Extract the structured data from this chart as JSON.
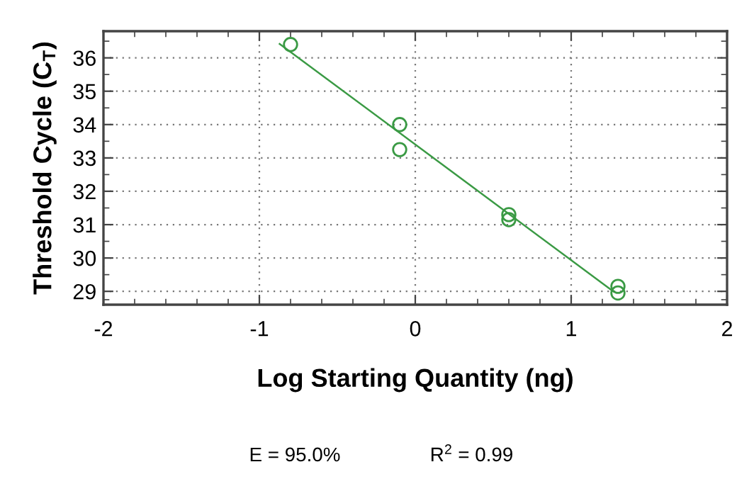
{
  "chart_data": {
    "type": "scatter",
    "xlabel": "Log Starting Quantity (ng)",
    "ylabel": "Threshold Cycle (C$_{T}$)",
    "series": [
      {
        "color": "#3a9a44",
        "marker": "circle",
        "x": [
          -0.8,
          -0.1,
          -0.1,
          0.6,
          0.6,
          1.3,
          1.3
        ],
        "values": [
          36.4,
          34.0,
          33.25,
          31.3,
          31.15,
          29.15,
          28.95
        ]
      },
      {
        "type": "line",
        "color": "#3a9a44",
        "marker": "none",
        "x": [
          -0.87,
          1.27
        ],
        "values": [
          36.42,
          29.0
        ]
      }
    ],
    "xlim": [
      -2,
      2
    ],
    "ylim": [
      28.6,
      36.8
    ],
    "xticks": [
      -2,
      {
        "value": -1.8,
        "label": null
      },
      {
        "value": -1.6,
        "label": null
      },
      {
        "value": -1.4,
        "label": null
      },
      {
        "value": -1.2,
        "label": null
      },
      -1,
      {
        "value": -0.8,
        "label": null
      },
      {
        "value": -0.6,
        "label": null
      },
      {
        "value": -0.4,
        "label": null
      },
      {
        "value": -0.2,
        "label": null
      },
      0,
      {
        "value": 0.2,
        "label": null
      },
      {
        "value": 0.4,
        "label": null
      },
      {
        "value": 0.6,
        "label": null
      },
      {
        "value": 0.8,
        "label": null
      },
      1,
      {
        "value": 1.2,
        "label": null
      },
      {
        "value": 1.4,
        "label": null
      },
      {
        "value": 1.6,
        "label": null
      },
      {
        "value": 1.8,
        "label": null
      },
      2
    ],
    "yticks": [
      {
        "value": 28.75,
        "label": null
      },
      29,
      {
        "value": 29.5,
        "label": null
      },
      30,
      {
        "value": 30.5,
        "label": null
      },
      31,
      {
        "value": 31.5,
        "label": null
      },
      32,
      {
        "value": 32.5,
        "label": null
      },
      33,
      {
        "value": 33.5,
        "label": null
      },
      34,
      {
        "value": 34.5,
        "label": null
      },
      35,
      {
        "value": 35.5,
        "label": null
      },
      36,
      {
        "value": 36.5,
        "label": null
      }
    ],
    "grid": true,
    "annotations": [
      "E = 95.0%",
      "R$^{2}$ = 0.99"
    ]
  }
}
